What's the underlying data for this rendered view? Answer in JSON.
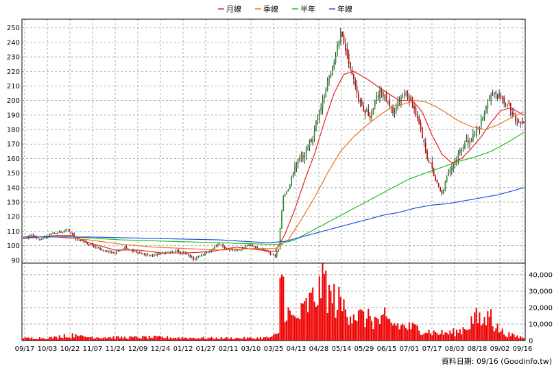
{
  "legend": {
    "items": [
      {
        "label": "月線",
        "color": "#e02020"
      },
      {
        "label": "季線",
        "color": "#e87020"
      },
      {
        "label": "半年",
        "color": "#20c020"
      },
      {
        "label": "年線",
        "color": "#2050e0"
      }
    ]
  },
  "source_text": "資料日期: 09/16  (Goodinfo.tw)",
  "chart_data": [
    {
      "type": "candlestick",
      "ylim": [
        88,
        256
      ],
      "yticks": [
        90,
        100,
        110,
        120,
        130,
        140,
        150,
        160,
        170,
        180,
        190,
        200,
        210,
        220,
        230,
        240,
        250
      ],
      "up_color": "#2e8b2e",
      "down_color": "#cc0000",
      "grid": true,
      "close_anchors": [
        [
          0,
          105
        ],
        [
          5,
          107
        ],
        [
          10,
          104
        ],
        [
          16,
          108
        ],
        [
          22,
          109
        ],
        [
          27,
          111
        ],
        [
          32,
          105
        ],
        [
          40,
          101
        ],
        [
          48,
          97
        ],
        [
          56,
          95
        ],
        [
          62,
          99
        ],
        [
          70,
          95
        ],
        [
          78,
          93
        ],
        [
          86,
          95
        ],
        [
          94,
          96
        ],
        [
          100,
          94
        ],
        [
          104,
          91
        ],
        [
          110,
          94
        ],
        [
          116,
          98
        ],
        [
          120,
          101
        ],
        [
          126,
          97
        ],
        [
          132,
          97
        ],
        [
          138,
          101
        ],
        [
          142,
          99
        ],
        [
          146,
          97
        ],
        [
          150,
          95
        ],
        [
          154,
          93
        ],
        [
          156,
          98
        ],
        [
          157,
          113
        ],
        [
          159,
          135
        ],
        [
          162,
          140
        ],
        [
          165,
          150
        ],
        [
          168,
          160
        ],
        [
          171,
          162
        ],
        [
          174,
          168
        ],
        [
          177,
          175
        ],
        [
          180,
          188
        ],
        [
          183,
          200
        ],
        [
          186,
          212
        ],
        [
          188,
          218
        ],
        [
          191,
          232
        ],
        [
          194,
          248
        ],
        [
          196,
          240
        ],
        [
          199,
          225
        ],
        [
          202,
          215
        ],
        [
          205,
          200
        ],
        [
          208,
          192
        ],
        [
          212,
          190
        ],
        [
          215,
          198
        ],
        [
          218,
          208
        ],
        [
          222,
          200
        ],
        [
          226,
          190
        ],
        [
          230,
          200
        ],
        [
          234,
          205
        ],
        [
          238,
          197
        ],
        [
          242,
          183
        ],
        [
          246,
          165
        ],
        [
          250,
          152
        ],
        [
          253,
          142
        ],
        [
          256,
          135
        ],
        [
          258,
          143
        ],
        [
          261,
          154
        ],
        [
          264,
          158
        ],
        [
          267,
          166
        ],
        [
          270,
          170
        ],
        [
          274,
          174
        ],
        [
          278,
          180
        ],
        [
          282,
          192
        ],
        [
          285,
          203
        ],
        [
          289,
          205
        ],
        [
          293,
          200
        ],
        [
          297,
          196
        ],
        [
          301,
          185
        ],
        [
          306,
          184
        ]
      ],
      "ma_lines": [
        {
          "name": "月線",
          "color": "#e02020",
          "anchors": [
            [
              0,
              105
            ],
            [
              20,
              107
            ],
            [
              30,
              107
            ],
            [
              40,
              102
            ],
            [
              56,
              97
            ],
            [
              70,
              97
            ],
            [
              85,
              95
            ],
            [
              100,
              95
            ],
            [
              115,
              96
            ],
            [
              130,
              99
            ],
            [
              145,
              97
            ],
            [
              154,
              96
            ],
            [
              160,
              108
            ],
            [
              166,
              125
            ],
            [
              172,
              145
            ],
            [
              178,
              163
            ],
            [
              184,
              185
            ],
            [
              190,
              205
            ],
            [
              196,
              218
            ],
            [
              202,
              220
            ],
            [
              210,
              215
            ],
            [
              220,
              207
            ],
            [
              230,
              200
            ],
            [
              238,
              200
            ],
            [
              244,
              192
            ],
            [
              250,
              176
            ],
            [
              256,
              163
            ],
            [
              262,
              157
            ],
            [
              268,
              160
            ],
            [
              274,
              167
            ],
            [
              280,
              175
            ],
            [
              286,
              185
            ],
            [
              292,
              193
            ],
            [
              298,
              195
            ],
            [
              306,
              190
            ]
          ]
        },
        {
          "name": "季線",
          "color": "#e87020",
          "anchors": [
            [
              0,
              106
            ],
            [
              20,
              106
            ],
            [
              40,
              104
            ],
            [
              60,
              101
            ],
            [
              80,
              99
            ],
            [
              100,
              98
            ],
            [
              120,
              97
            ],
            [
              140,
              98
            ],
            [
              154,
              98
            ],
            [
              162,
              104
            ],
            [
              170,
              118
            ],
            [
              178,
              133
            ],
            [
              186,
              150
            ],
            [
              194,
              165
            ],
            [
              202,
              175
            ],
            [
              210,
              183
            ],
            [
              218,
              190
            ],
            [
              226,
              196
            ],
            [
              234,
              198
            ],
            [
              240,
              200
            ],
            [
              246,
              199
            ],
            [
              252,
              196
            ],
            [
              258,
              192
            ],
            [
              266,
              186
            ],
            [
              274,
              182
            ],
            [
              282,
              180
            ],
            [
              290,
              183
            ],
            [
              298,
              188
            ],
            [
              306,
              192
            ]
          ]
        },
        {
          "name": "半年",
          "color": "#20c020",
          "anchors": [
            [
              0,
              106
            ],
            [
              30,
              106
            ],
            [
              60,
              104
            ],
            [
              90,
              103
            ],
            [
              120,
              102
            ],
            [
              150,
              101
            ],
            [
              156,
              101
            ],
            [
              166,
              104
            ],
            [
              176,
              110
            ],
            [
              186,
              116
            ],
            [
              196,
              122
            ],
            [
              206,
              128
            ],
            [
              216,
              134
            ],
            [
              226,
              140
            ],
            [
              236,
              146
            ],
            [
              246,
              150
            ],
            [
              256,
              154
            ],
            [
              266,
              158
            ],
            [
              276,
              161
            ],
            [
              286,
              165
            ],
            [
              296,
              171
            ],
            [
              306,
              178
            ]
          ]
        },
        {
          "name": "年線",
          "color": "#2050e0",
          "anchors": [
            [
              0,
              106
            ],
            [
              40,
              106
            ],
            [
              80,
              105
            ],
            [
              120,
              104
            ],
            [
              150,
              102
            ],
            [
              160,
              103
            ],
            [
              170,
              106
            ],
            [
              180,
              109
            ],
            [
              190,
              112
            ],
            [
              200,
              115
            ],
            [
              210,
              118
            ],
            [
              220,
              121
            ],
            [
              230,
              123
            ],
            [
              240,
              126
            ],
            [
              250,
              128
            ],
            [
              260,
              129
            ],
            [
              270,
              131
            ],
            [
              280,
              133
            ],
            [
              290,
              135
            ],
            [
              300,
              138
            ],
            [
              306,
              140
            ]
          ]
        }
      ]
    },
    {
      "type": "bar",
      "ylim": [
        0,
        47000
      ],
      "yticks": [
        0,
        10000,
        20000,
        30000,
        40000
      ],
      "ytick_labels": [
        "0",
        "10,000",
        "20,000",
        "30,000",
        "40,000"
      ],
      "color": "#ee0000",
      "volume_anchors": [
        [
          0,
          1500
        ],
        [
          20,
          2000
        ],
        [
          26,
          4200
        ],
        [
          27,
          1800
        ],
        [
          34,
          5500
        ],
        [
          35,
          2500
        ],
        [
          60,
          2000
        ],
        [
          80,
          2200
        ],
        [
          100,
          1800
        ],
        [
          120,
          1600
        ],
        [
          140,
          1600
        ],
        [
          150,
          2000
        ],
        [
          156,
          4000
        ],
        [
          157,
          28000
        ],
        [
          158,
          41000
        ],
        [
          159,
          36000
        ],
        [
          160,
          24000
        ],
        [
          163,
          16000
        ],
        [
          166,
          14000
        ],
        [
          170,
          18000
        ],
        [
          174,
          24000
        ],
        [
          178,
          28000
        ],
        [
          181,
          36000
        ],
        [
          183,
          46000
        ],
        [
          185,
          38000
        ],
        [
          188,
          30000
        ],
        [
          192,
          26000
        ],
        [
          196,
          22000
        ],
        [
          200,
          20000
        ],
        [
          206,
          16000
        ],
        [
          212,
          14000
        ],
        [
          218,
          13000
        ],
        [
          224,
          12000
        ],
        [
          230,
          10000
        ],
        [
          236,
          9000
        ],
        [
          242,
          8000
        ],
        [
          248,
          6000
        ],
        [
          254,
          5000
        ],
        [
          260,
          5000
        ],
        [
          266,
          6000
        ],
        [
          272,
          10000
        ],
        [
          276,
          16000
        ],
        [
          280,
          12000
        ],
        [
          284,
          15000
        ],
        [
          286,
          19000
        ],
        [
          288,
          10000
        ],
        [
          294,
          5000
        ],
        [
          300,
          3000
        ],
        [
          306,
          2000
        ]
      ],
      "volume_spikes": [
        [
          157,
          38000
        ],
        [
          158,
          40000
        ],
        [
          183,
          48000
        ],
        [
          188,
          30000
        ],
        [
          181,
          39000
        ],
        [
          212,
          15000
        ],
        [
          221,
          20000
        ],
        [
          286,
          19000
        ],
        [
          276,
          17000
        ]
      ]
    }
  ],
  "x_labels": [
    "09/17",
    "10/03",
    "10/22",
    "11/07",
    "11/24",
    "12/09",
    "12/24",
    "01/12",
    "01/27",
    "02/11",
    "03/10",
    "03/25",
    "04/13",
    "04/28",
    "05/14",
    "05/29",
    "06/15",
    "07/01",
    "07/17",
    "08/03",
    "08/18",
    "09/02",
    "09/16"
  ],
  "n_days": 307
}
